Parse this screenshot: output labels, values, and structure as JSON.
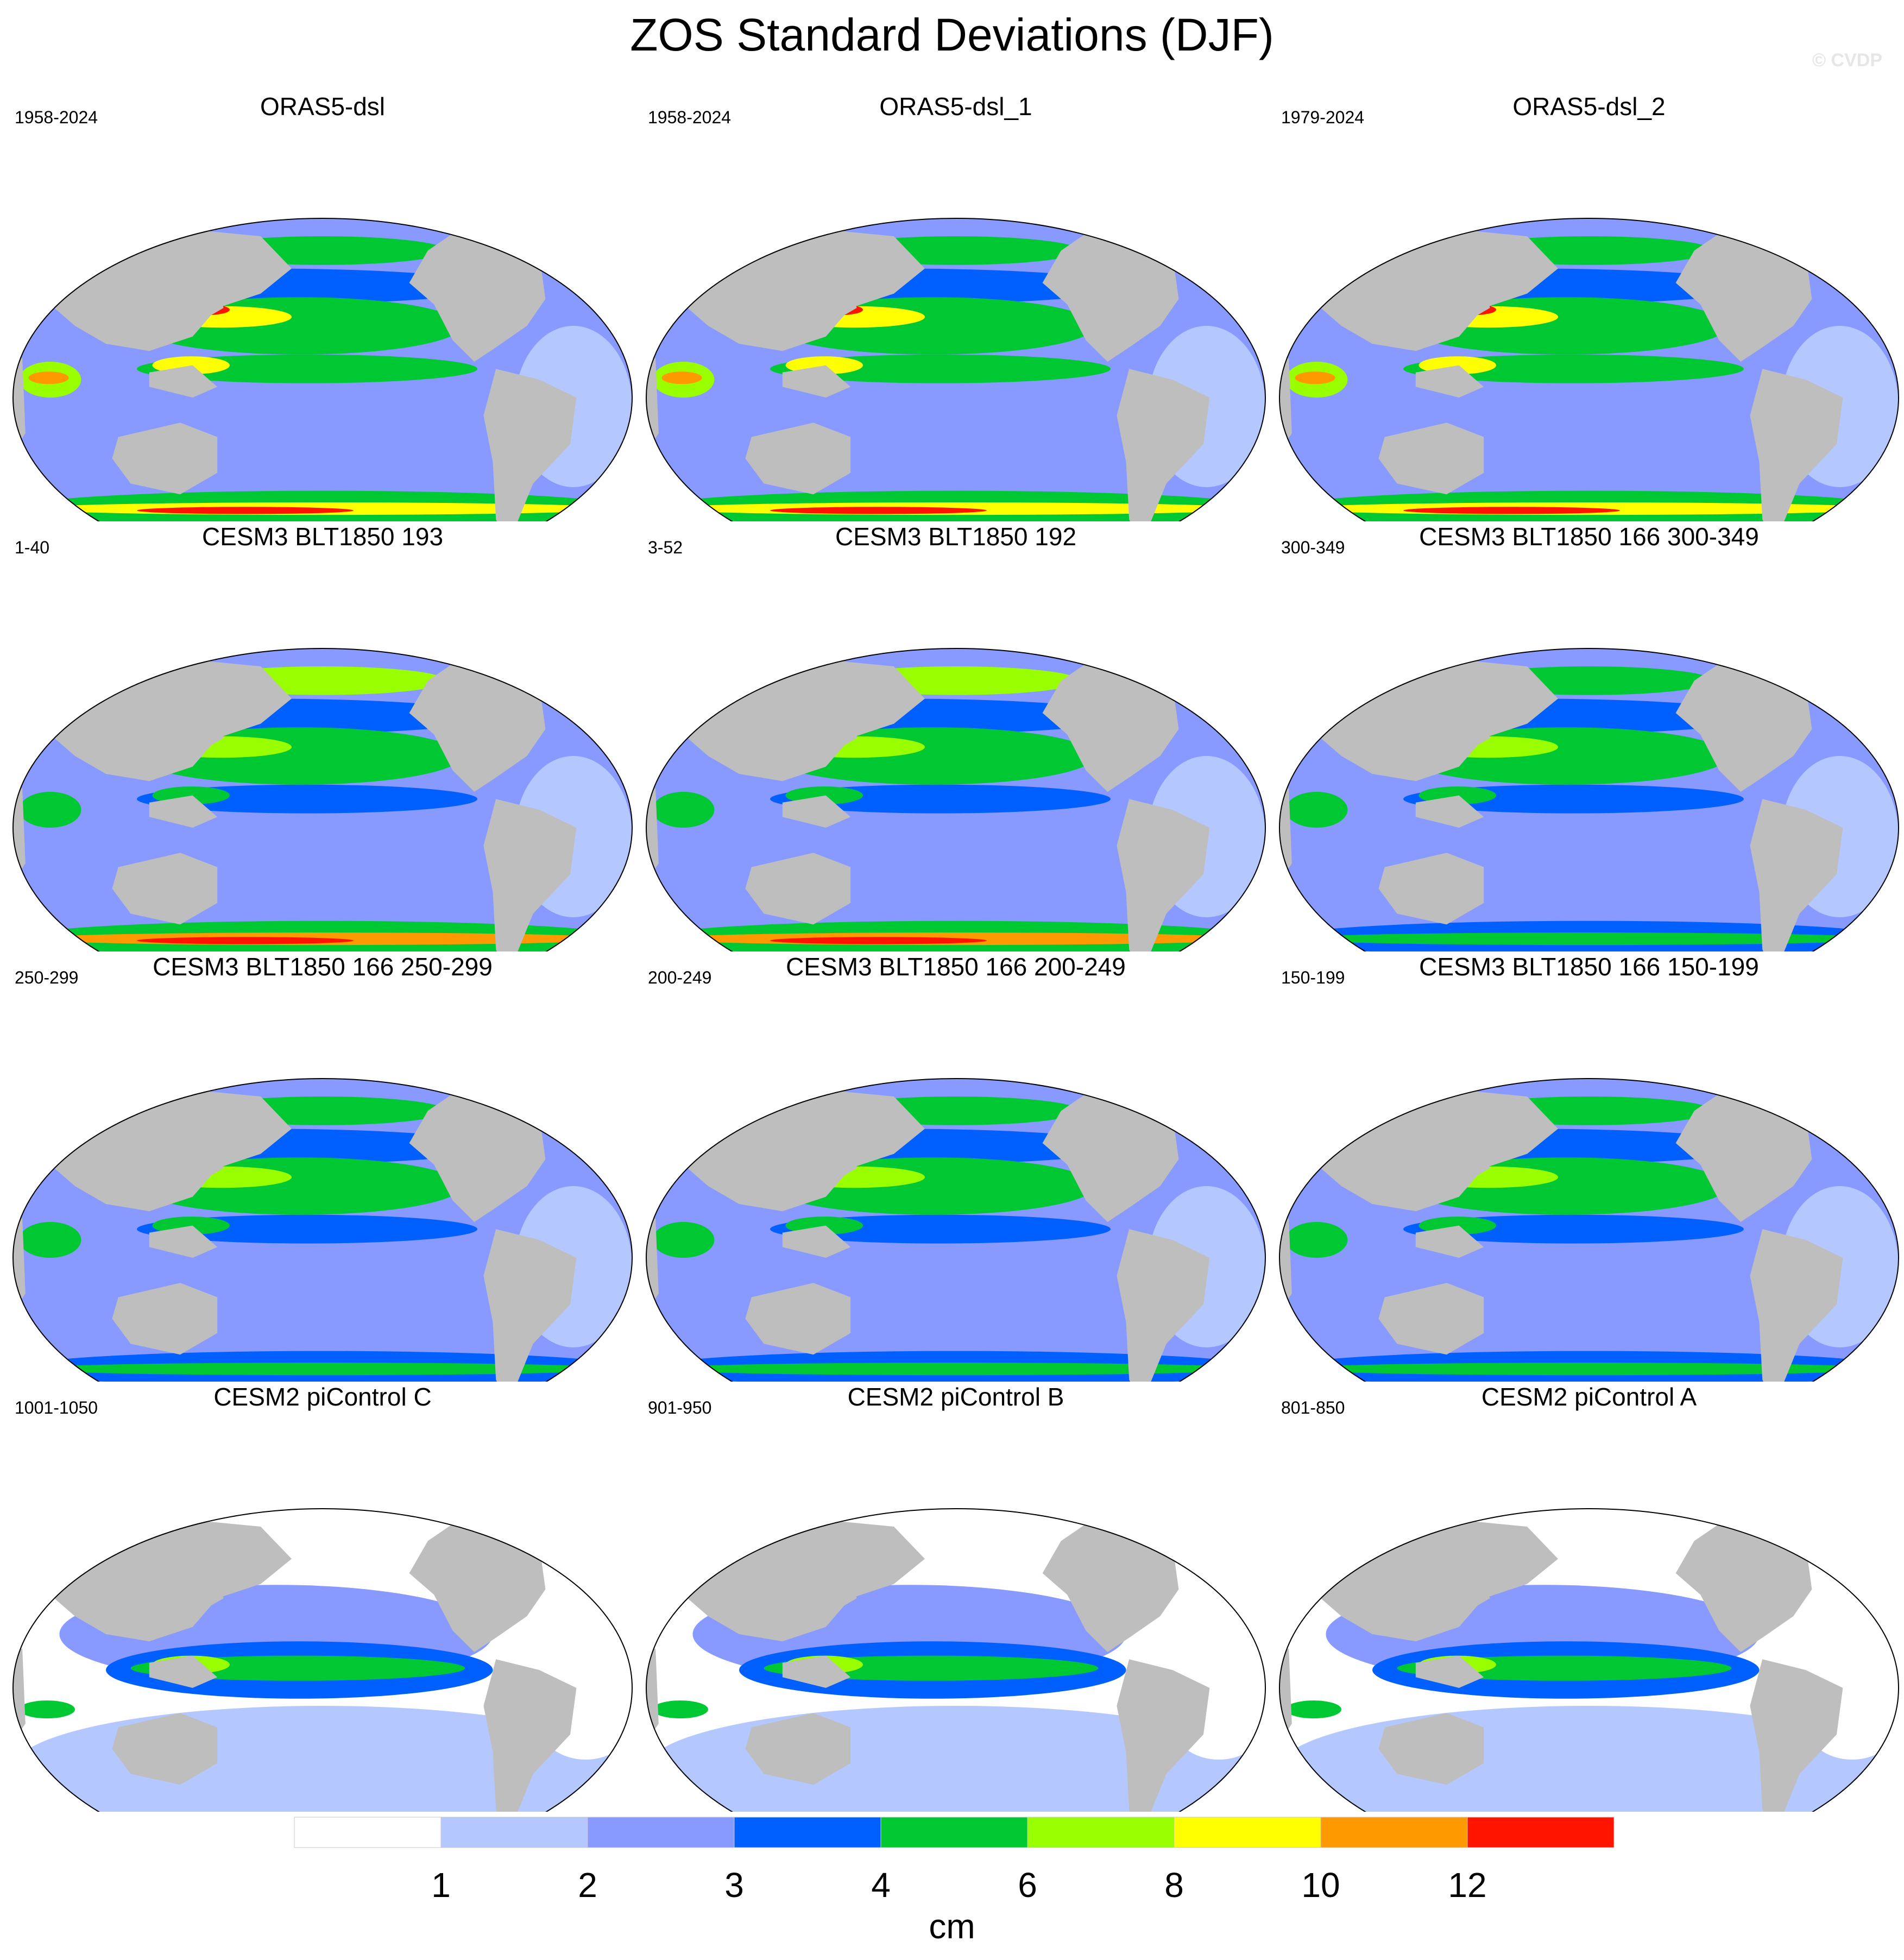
{
  "title": "ZOS Standard Deviations (DJF)",
  "watermark": "© CVDP",
  "colors": {
    "land": "#bebebe",
    "levels": [
      "#ffffff",
      "#b4c8ff",
      "#8899ff",
      "#0060ff",
      "#00c832",
      "#99ff00",
      "#ffff00",
      "#ff9900",
      "#ff1400"
    ]
  },
  "colorbar": {
    "tick_labels": [
      "1",
      "2",
      "3",
      "4",
      "6",
      "8",
      "10",
      "12"
    ],
    "unit": "cm"
  },
  "chart_data": {
    "type": "heatmap",
    "projection": "robinson-like global ellipse, Pacific-centered",
    "units": "cm",
    "levels": [
      1,
      2,
      3,
      4,
      6,
      8,
      10,
      12
    ],
    "panels": [
      {
        "title": "ORAS5-dsl",
        "period": "1958-2024",
        "regime": "obs"
      },
      {
        "title": "ORAS5-dsl_1",
        "period": "1958-2024",
        "regime": "obs"
      },
      {
        "title": "ORAS5-dsl_2",
        "period": "1979-2024",
        "regime": "obs"
      },
      {
        "title": "CESM3 BLT1850 193",
        "period": "1-40",
        "regime": "cesm3-strong"
      },
      {
        "title": "CESM3 BLT1850 192",
        "period": "3-52",
        "regime": "cesm3-strong"
      },
      {
        "title": "CESM3 BLT1850 166 300-349",
        "period": "300-349",
        "regime": "cesm3"
      },
      {
        "title": "CESM3 BLT1850 166 250-299",
        "period": "250-299",
        "regime": "cesm3"
      },
      {
        "title": "CESM3 BLT1850 166 200-249",
        "period": "200-249",
        "regime": "cesm3"
      },
      {
        "title": "CESM3 BLT1850 166 150-199",
        "period": "150-199",
        "regime": "cesm3"
      },
      {
        "title": "CESM2 piControl C",
        "period": "1001-1050",
        "regime": "cesm2"
      },
      {
        "title": "CESM2 piControl B",
        "period": "901-950",
        "regime": "cesm2"
      },
      {
        "title": "CESM2 piControl A",
        "period": "801-850",
        "regime": "cesm2"
      }
    ]
  }
}
